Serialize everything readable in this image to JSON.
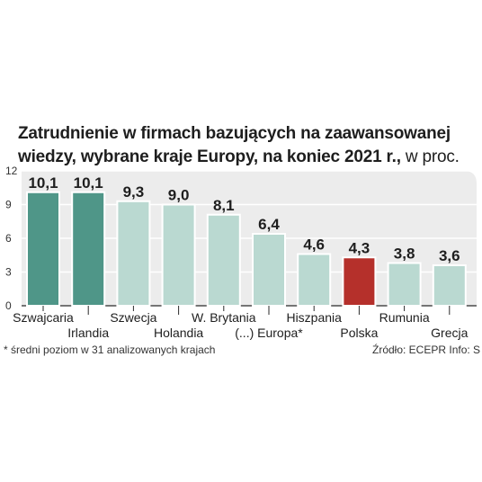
{
  "title": {
    "line1": "Zatrudnienie w firmach bazujących na zaawansowanej",
    "line2": "wiedzy, wybrane kraje Europy, na koniec 2021 r.,",
    "unit": " w proc."
  },
  "footnote": "* średni poziom w 31 analizowanych krajach",
  "source": "Źródło: ECEPR   Info: S",
  "colors": {
    "highlight_teal": "#4f9688",
    "light_teal": "#bad9d1",
    "poland_red": "#b5302b",
    "plot_background": "#ececec",
    "grid": "#ffffff"
  },
  "chart_data": {
    "type": "bar",
    "categories": [
      "Szwajcaria",
      "Irlandia",
      "Szwecja",
      "Holandia",
      "W. Brytania",
      "(...) Europa*",
      "Hiszpania",
      "Polska",
      "Rumunia",
      "Grecja"
    ],
    "values": [
      10.1,
      10.1,
      9.3,
      9.0,
      8.1,
      6.4,
      4.6,
      4.3,
      3.8,
      3.6
    ],
    "value_labels": [
      "10,1",
      "10,1",
      "9,3",
      "9,0",
      "8,1",
      "6,4",
      "4,6",
      "4,3",
      "3,8",
      "3,6"
    ],
    "bar_colors": [
      "highlight_teal",
      "highlight_teal",
      "light_teal",
      "light_teal",
      "light_teal",
      "light_teal",
      "light_teal",
      "poland_red",
      "light_teal",
      "light_teal"
    ],
    "yticks": [
      "0",
      "3",
      "6",
      "9",
      "12"
    ],
    "ylim": [
      0,
      12
    ],
    "grid": true
  }
}
